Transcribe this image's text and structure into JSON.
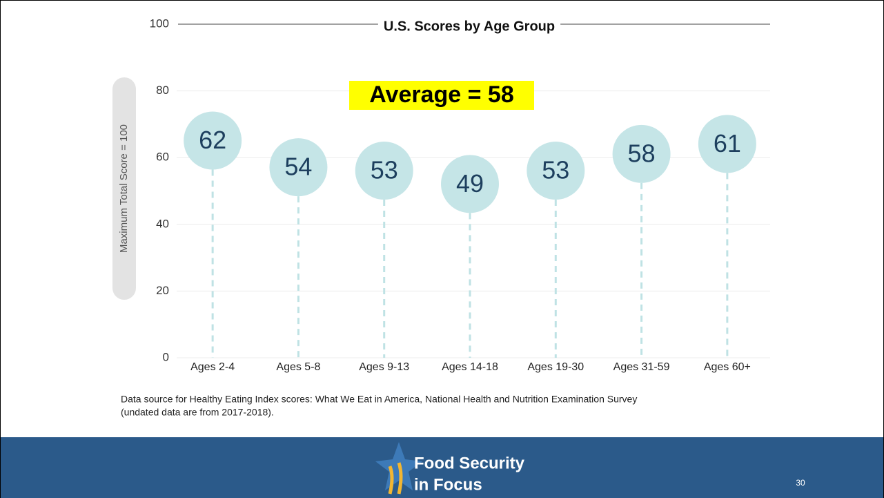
{
  "chart_data": {
    "type": "bubble-lollipop",
    "title": "U.S. Scores by Age Group",
    "y_label": "Maximum Total Score = 100",
    "annotation": "Average = 58",
    "categories": [
      "Ages 2-4",
      "Ages 5-8",
      "Ages 9-13",
      "Ages 14-18",
      "Ages 19-30",
      "Ages 31-59",
      "Ages 60+"
    ],
    "values": [
      62,
      54,
      53,
      49,
      53,
      58,
      61
    ],
    "color": "#c5e5e7",
    "ylim": [
      0,
      100
    ],
    "yticks": [
      0,
      20,
      40,
      60,
      80,
      100
    ],
    "grid": true,
    "source": "Data source for Healthy Eating Index scores: What We Eat in America, National Health and Nutrition Examination Survey",
    "source_line2": "(undated data are from 2017-2018)."
  },
  "footer": {
    "logo_line1": "Food Security",
    "logo_line2": "in Focus",
    "page_number": "30"
  }
}
